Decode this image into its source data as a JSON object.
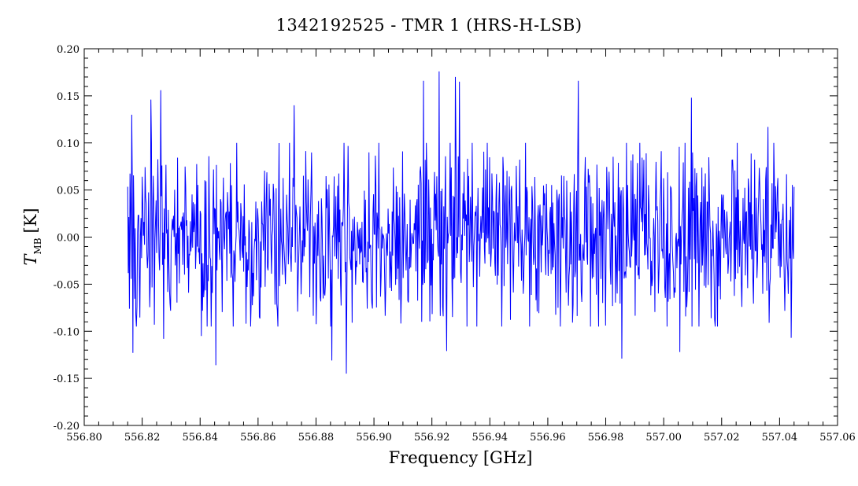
{
  "chart_data": {
    "type": "line",
    "title": "1342192525 - TMR 1 (HRS-H-LSB)",
    "xlabel": "Frequency [GHz]",
    "ylabel": {
      "symbol": "T",
      "subscript": "MB",
      "unit": "[K]"
    },
    "xlim": [
      556.8,
      557.06
    ],
    "ylim": [
      -0.2,
      0.2
    ],
    "x_ticks": [
      "556.80",
      "556.82",
      "556.84",
      "556.86",
      "556.88",
      "556.90",
      "556.92",
      "556.94",
      "556.96",
      "556.98",
      "557.00",
      "557.02",
      "557.04",
      "557.06"
    ],
    "y_ticks": [
      "0.20",
      "0.15",
      "0.10",
      "0.05",
      "0.00",
      "-0.05",
      "-0.10",
      "-0.15",
      "-0.20"
    ],
    "grid": false,
    "series": [
      {
        "line_color": "#0000ff",
        "x_range": [
          556.815,
          557.045
        ],
        "noise_rms": 0.045,
        "notable_points": [
          {
            "x": 556.8165,
            "y": 0.13
          },
          {
            "x": 556.8168,
            "y": -0.123
          },
          {
            "x": 556.823,
            "y": 0.146
          },
          {
            "x": 556.8265,
            "y": 0.156
          },
          {
            "x": 556.8275,
            "y": -0.108
          },
          {
            "x": 556.8405,
            "y": -0.105
          },
          {
            "x": 556.8455,
            "y": -0.136
          },
          {
            "x": 556.8725,
            "y": 0.14
          },
          {
            "x": 556.8855,
            "y": -0.131
          },
          {
            "x": 556.8905,
            "y": -0.145
          },
          {
            "x": 556.917,
            "y": 0.166
          },
          {
            "x": 556.9225,
            "y": 0.176
          },
          {
            "x": 556.925,
            "y": -0.121
          },
          {
            "x": 556.928,
            "y": 0.17
          },
          {
            "x": 556.9295,
            "y": 0.165
          },
          {
            "x": 556.9705,
            "y": 0.166
          },
          {
            "x": 556.9855,
            "y": -0.129
          },
          {
            "x": 557.0055,
            "y": -0.122
          },
          {
            "x": 557.0095,
            "y": 0.148
          },
          {
            "x": 557.036,
            "y": 0.117
          },
          {
            "x": 557.044,
            "y": -0.107
          }
        ]
      }
    ]
  }
}
